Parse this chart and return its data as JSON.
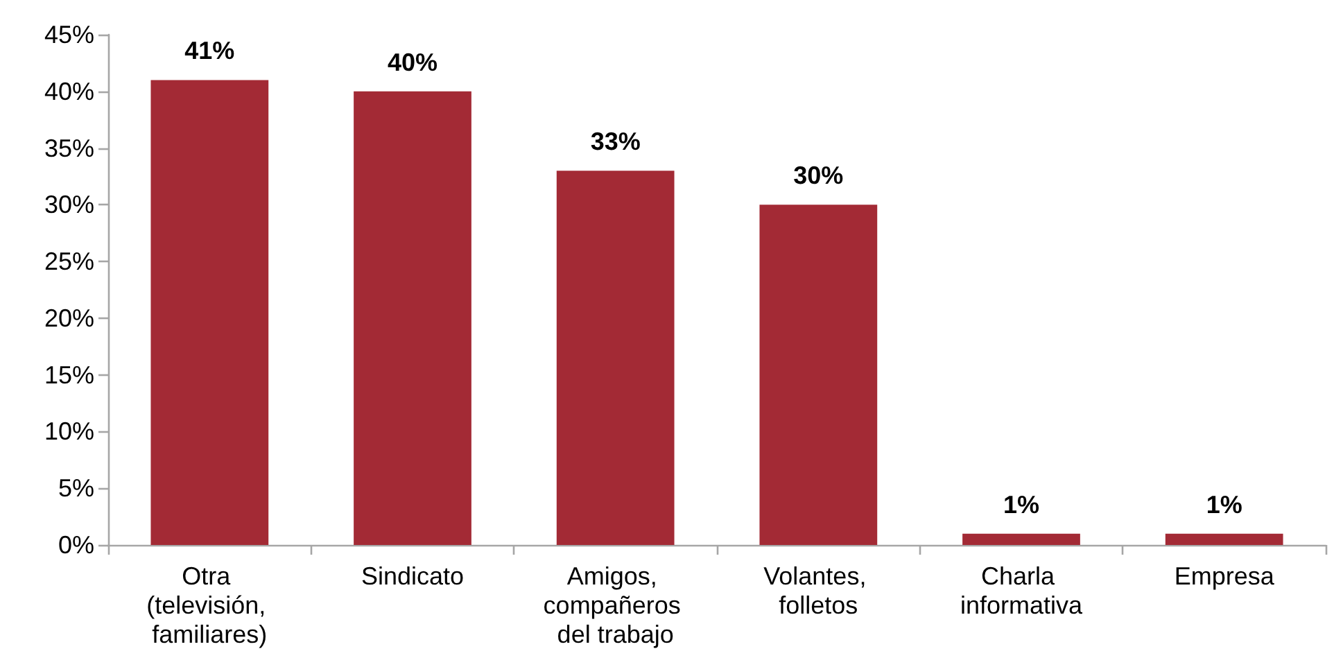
{
  "chart_data": {
    "type": "bar",
    "categories": [
      "Otra (televisión, familiares)",
      "Sindicato",
      "Amigos, compañeros del trabajo",
      "Volantes, folletos",
      "Charla informativa",
      "Empresa"
    ],
    "values": [
      41,
      40,
      33,
      30,
      1,
      1
    ],
    "value_labels": [
      "41%",
      "40%",
      "33%",
      "30%",
      "1%",
      "1%"
    ],
    "color": "#a32a35",
    "ylim": [
      0,
      45
    ],
    "yticks": [
      {
        "value": 0,
        "label": "0%"
      },
      {
        "value": 5,
        "label": "5%"
      },
      {
        "value": 10,
        "label": "10%"
      },
      {
        "value": 15,
        "label": "15%"
      },
      {
        "value": 20,
        "label": "20%"
      },
      {
        "value": 25,
        "label": "25%"
      },
      {
        "value": 30,
        "label": "30%"
      },
      {
        "value": 35,
        "label": "35%"
      },
      {
        "value": 40,
        "label": "40%"
      },
      {
        "value": 45,
        "label": "45%"
      }
    ],
    "grid": false
  }
}
